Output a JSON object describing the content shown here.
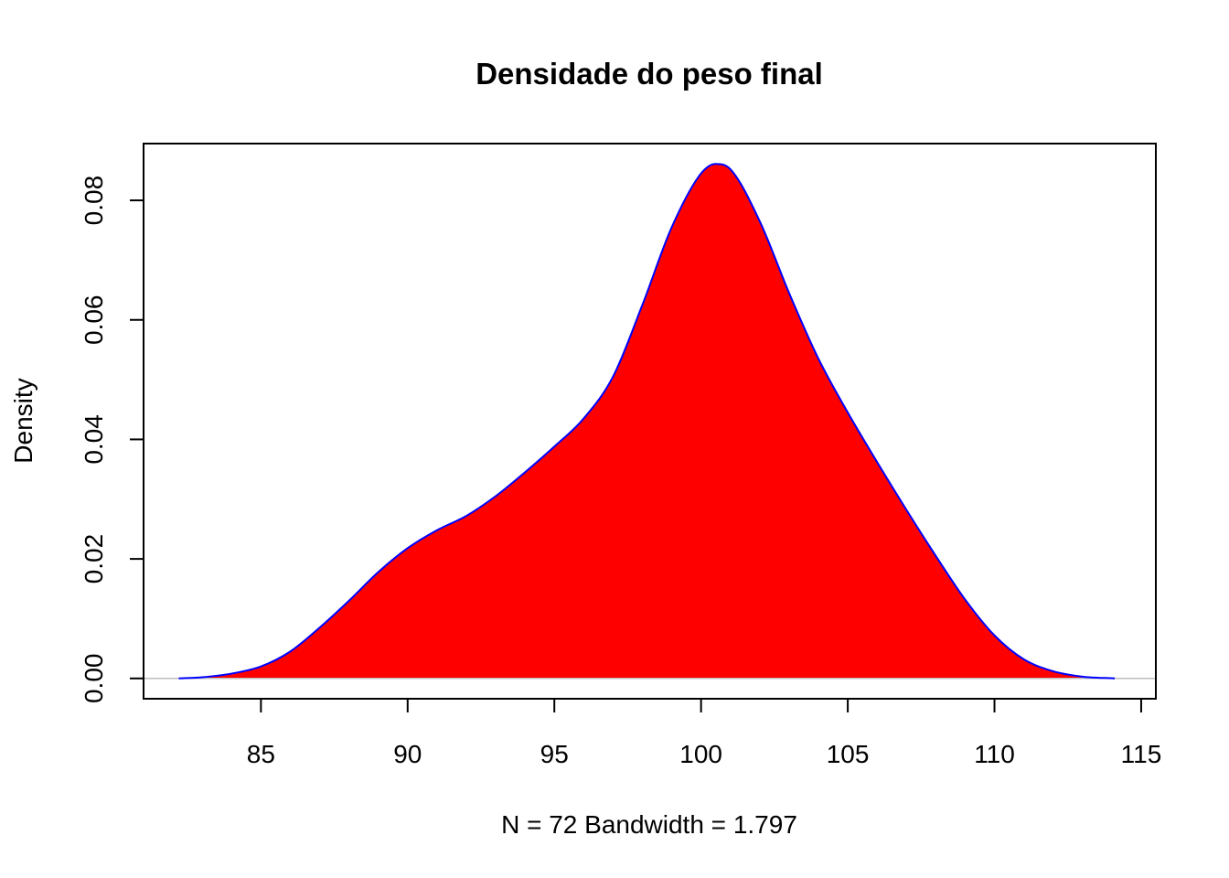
{
  "chart_data": {
    "type": "area",
    "title": "Densidade do peso final",
    "xlabel": "N = 72   Bandwidth = 1.797",
    "ylabel": "Density",
    "xlim": [
      81,
      115.5
    ],
    "ylim": [
      -0.0034,
      0.0895
    ],
    "x_ticks": [
      85,
      90,
      95,
      100,
      105,
      110,
      115
    ],
    "x_tick_labels": [
      "85",
      "90",
      "95",
      "100",
      "105",
      "110",
      "115"
    ],
    "y_ticks": [
      0.0,
      0.02,
      0.04,
      0.06,
      0.08
    ],
    "y_tick_labels": [
      "0.00",
      "0.02",
      "0.04",
      "0.06",
      "0.08"
    ],
    "fill_color": "#ff0000",
    "line_color": "#0000ff",
    "baseline_color": "#bebebe",
    "grid": false,
    "series": [
      {
        "x": [
          82.2,
          83.0,
          84.0,
          85.0,
          86.0,
          87.0,
          88.0,
          89.0,
          90.0,
          91.0,
          92.0,
          93.0,
          94.0,
          95.0,
          96.0,
          97.0,
          98.0,
          99.0,
          100.0,
          100.5,
          101.0,
          102.0,
          103.0,
          104.0,
          105.0,
          106.0,
          107.0,
          108.0,
          109.0,
          110.0,
          111.0,
          112.0,
          113.0,
          114.1
        ],
        "y": [
          0.0,
          0.0002,
          0.0008,
          0.002,
          0.0045,
          0.0085,
          0.013,
          0.0178,
          0.0218,
          0.0248,
          0.0272,
          0.0305,
          0.0345,
          0.0388,
          0.0435,
          0.0505,
          0.0625,
          0.0755,
          0.0845,
          0.0861,
          0.0852,
          0.0765,
          0.0645,
          0.0535,
          0.0445,
          0.0362,
          0.0282,
          0.0205,
          0.0132,
          0.0072,
          0.0032,
          0.0012,
          0.0003,
          0.0
        ]
      }
    ]
  }
}
